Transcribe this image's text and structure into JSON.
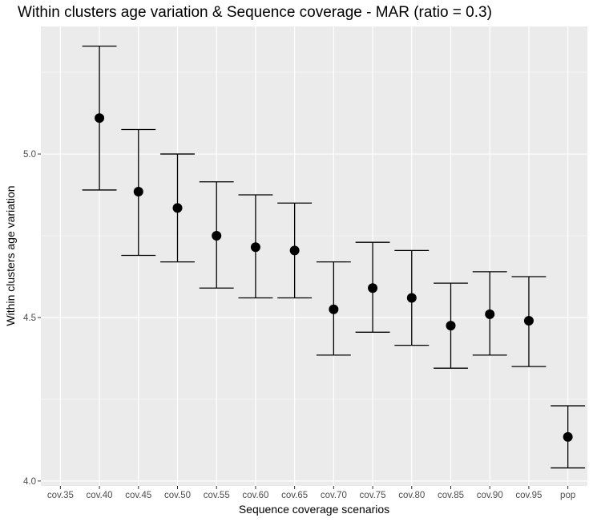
{
  "chart_data": {
    "type": "scatter",
    "subtype": "point-with-errorbars",
    "title": "Within clusters age variation & Sequence coverage - MAR (ratio = 0.3)",
    "xlabel": "Sequence coverage scenarios",
    "ylabel": "Within clusters age variation",
    "categories": [
      "cov.35",
      "cov.40",
      "cov.45",
      "cov.50",
      "cov.55",
      "cov.60",
      "cov.65",
      "cov.70",
      "cov.75",
      "cov.80",
      "cov.85",
      "cov.90",
      "cov.95",
      "pop"
    ],
    "series": [
      {
        "values": [
          null,
          5.11,
          4.885,
          4.835,
          4.75,
          4.715,
          4.705,
          4.525,
          4.59,
          4.56,
          4.475,
          4.51,
          4.49,
          4.135
        ],
        "lower": [
          null,
          4.89,
          4.69,
          4.67,
          4.59,
          4.56,
          4.56,
          4.385,
          4.455,
          4.415,
          4.345,
          4.385,
          4.35,
          4.04
        ],
        "upper": [
          null,
          5.33,
          5.075,
          5.0,
          4.915,
          4.875,
          4.85,
          4.67,
          4.73,
          4.705,
          4.605,
          4.64,
          4.625,
          4.23
        ]
      }
    ],
    "yticks": [
      4.0,
      4.5,
      5.0
    ],
    "ytick_labels": [
      "4.0",
      "4.5",
      "5.0"
    ],
    "ylim": [
      3.985,
      5.39
    ],
    "grid": true,
    "colors": {
      "panel_background": "#ebebeb",
      "grid_major": "#ffffff",
      "point": "#000000",
      "errorbar": "#000000"
    }
  }
}
